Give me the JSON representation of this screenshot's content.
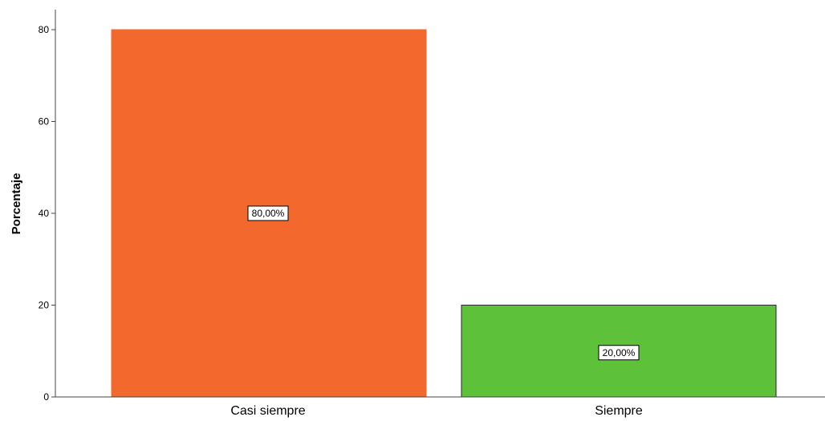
{
  "chart_data": {
    "type": "bar",
    "categories": [
      "Casi siempre",
      "Siempre"
    ],
    "values": [
      80,
      20
    ],
    "data_labels": [
      "80,00%",
      "20,00%"
    ],
    "colors": [
      "#f3692d",
      "#5dc13a"
    ],
    "title": "",
    "xlabel": "",
    "ylabel": "Porcentaje",
    "ylim": [
      0,
      84
    ],
    "yticks": [
      0,
      20,
      40,
      60,
      80
    ],
    "grid": false
  }
}
